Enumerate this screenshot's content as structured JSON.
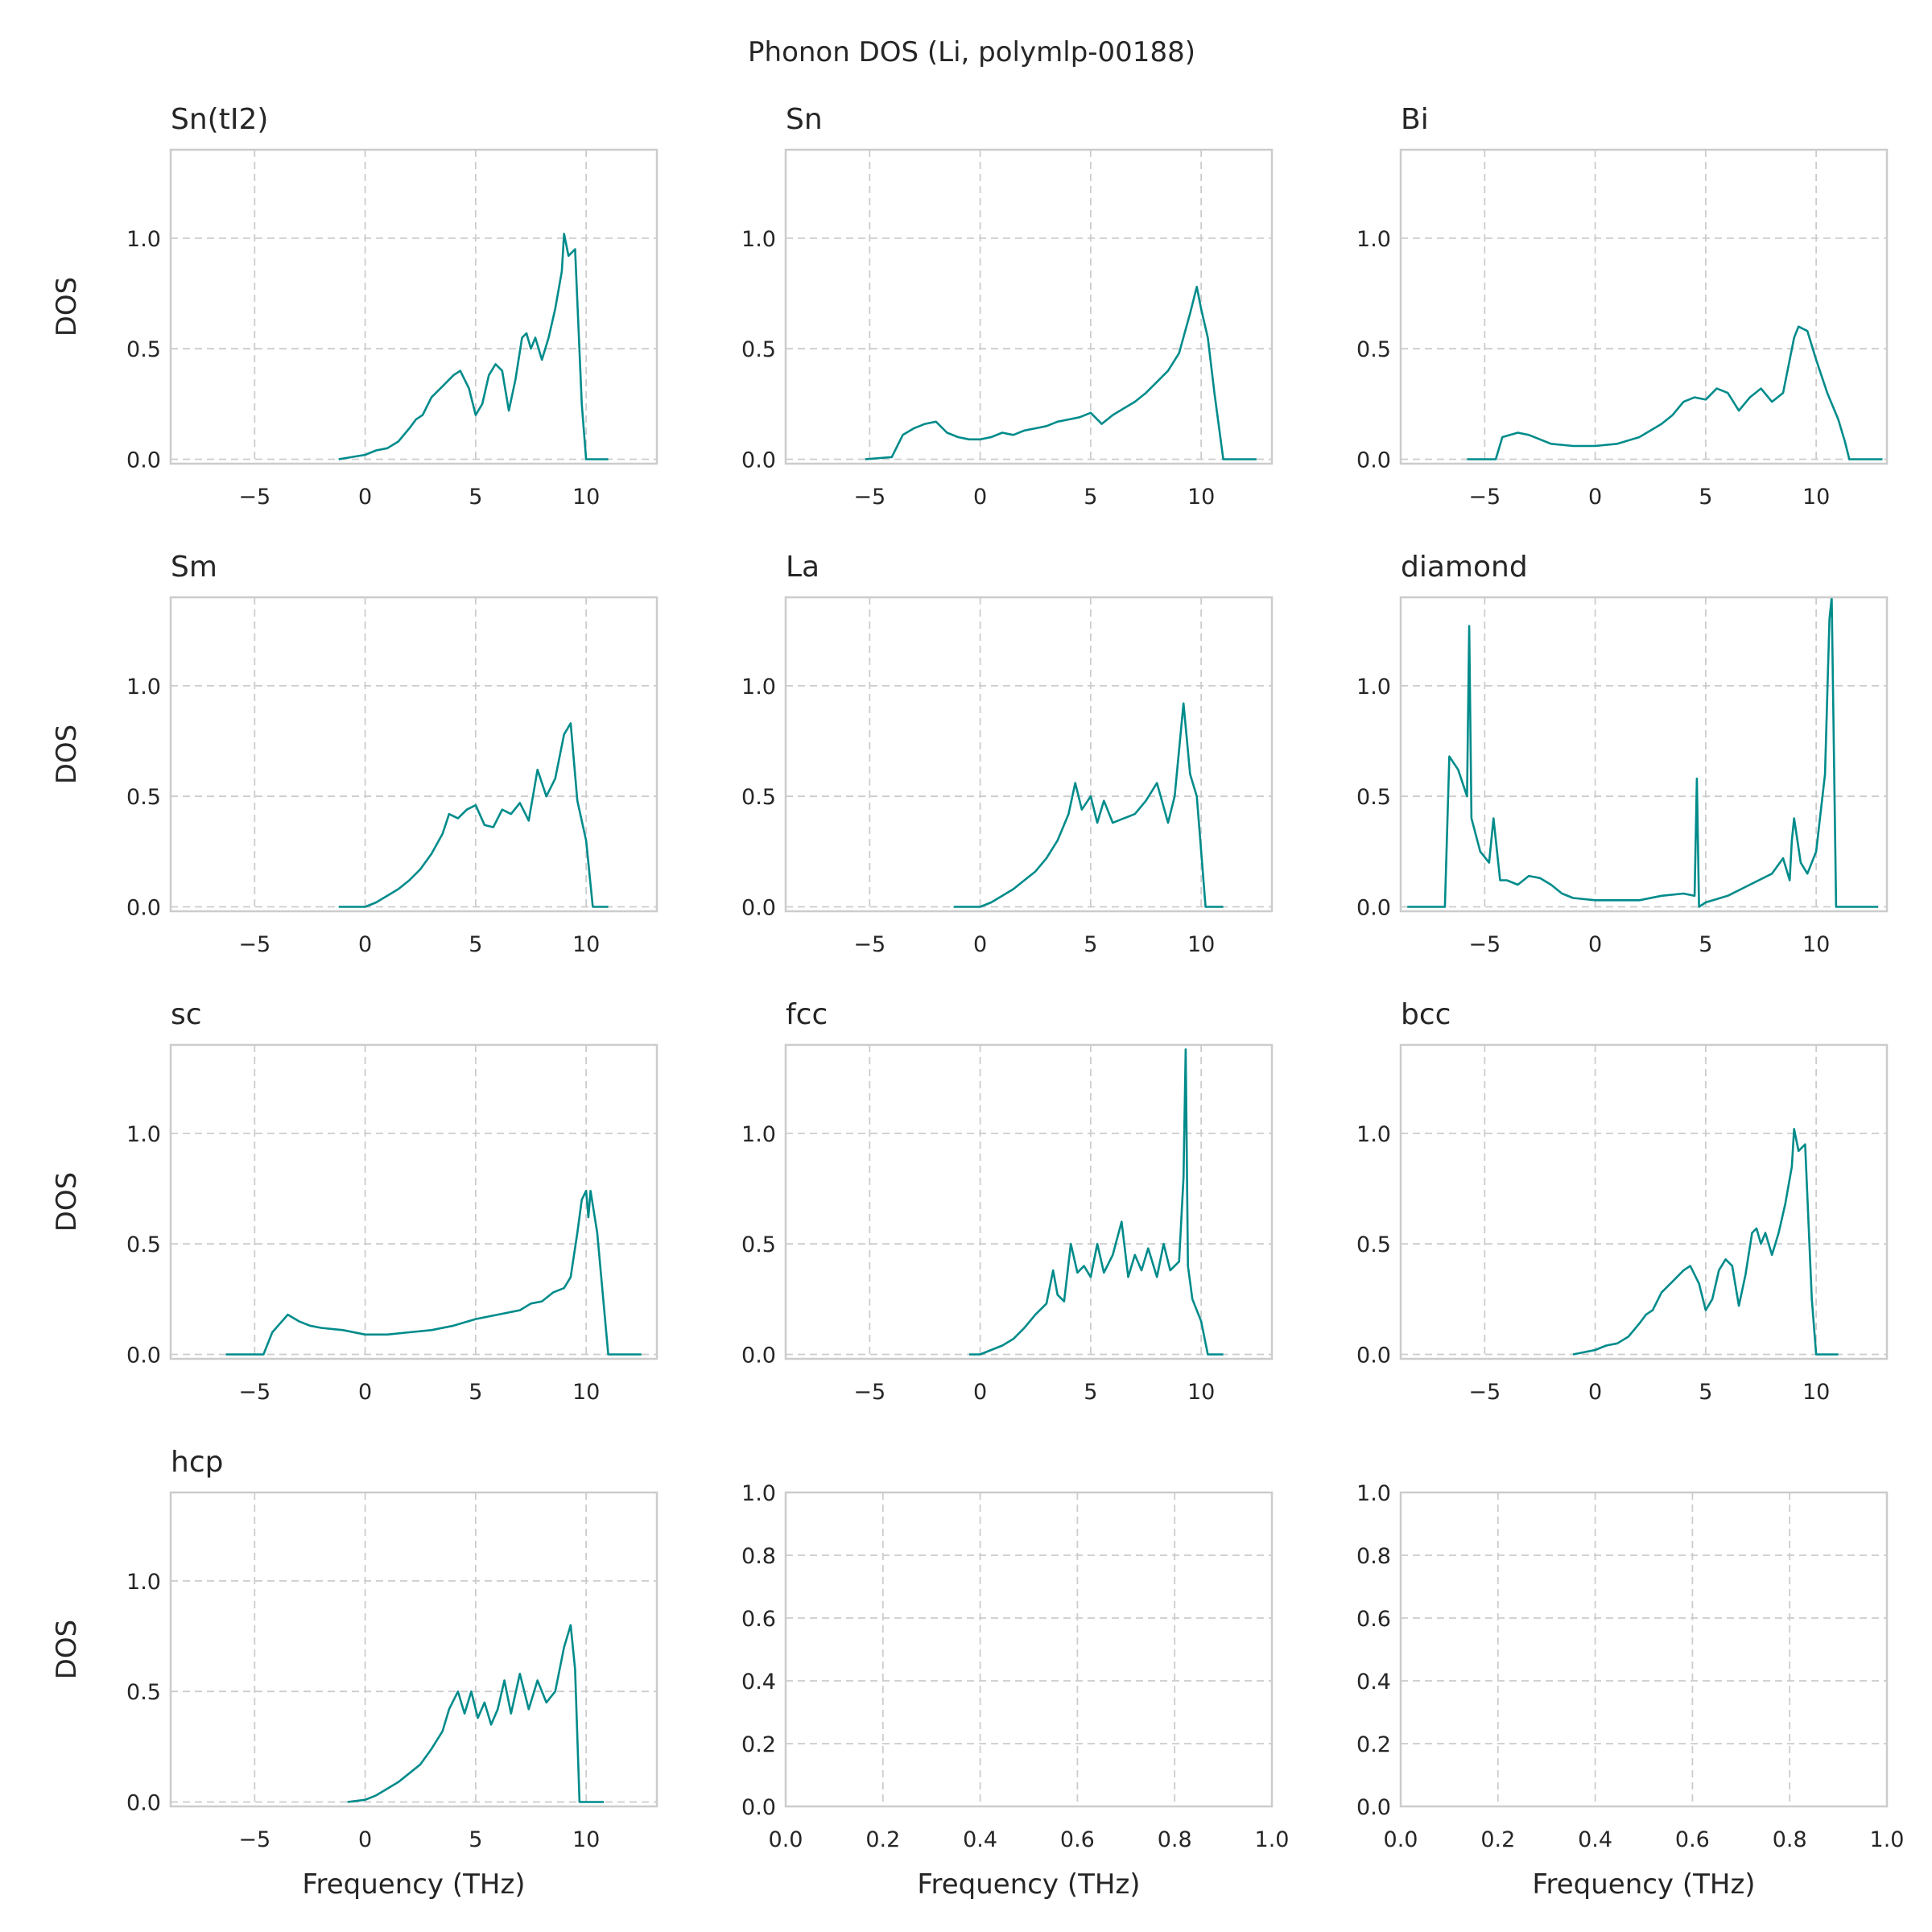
{
  "figure_title": "Phonon DOS (Li, polymlp-00188)",
  "colors": {
    "line": "#008b8b",
    "grid": "#cccccc",
    "frame": "#cccccc",
    "text": "#262626"
  },
  "chart_data": [
    {
      "type": "line",
      "title": "Sn(tI2)",
      "xlabel": "",
      "ylabel": "DOS",
      "xlim": [
        -8.8,
        13.2
      ],
      "ylim": [
        -0.02,
        1.4
      ],
      "xticks": [
        "−5",
        "0",
        "5",
        "10"
      ],
      "yticks": [
        "0.0",
        "0.5",
        "1.0"
      ],
      "grid": true,
      "series": [
        {
          "x": [
            -1.2,
            0,
            0.5,
            1,
            1.5,
            2,
            2.3,
            2.6,
            3,
            3.5,
            4,
            4.3,
            4.7,
            5,
            5.3,
            5.6,
            5.9,
            6.2,
            6.5,
            6.8,
            7.1,
            7.3,
            7.5,
            7.7,
            8,
            8.3,
            8.6,
            8.9,
            9,
            9.2,
            9.5,
            9.8,
            10,
            11
          ],
          "y": [
            0,
            0.02,
            0.04,
            0.05,
            0.08,
            0.14,
            0.18,
            0.2,
            0.28,
            0.33,
            0.38,
            0.4,
            0.32,
            0.2,
            0.25,
            0.38,
            0.43,
            0.4,
            0.22,
            0.36,
            0.55,
            0.57,
            0.5,
            0.55,
            0.45,
            0.55,
            0.68,
            0.85,
            1.02,
            0.92,
            0.95,
            0.25,
            0,
            0
          ]
        }
      ]
    },
    {
      "type": "line",
      "title": "Sn",
      "xlabel": "",
      "ylabel": "",
      "xlim": [
        -8.8,
        13.2
      ],
      "ylim": [
        -0.02,
        1.4
      ],
      "xticks": [
        "−5",
        "0",
        "5",
        "10"
      ],
      "yticks": [
        "0.0",
        "0.5",
        "1.0"
      ],
      "grid": true,
      "series": [
        {
          "x": [
            -5.2,
            -4,
            -3.5,
            -3,
            -2.5,
            -2,
            -1.5,
            -1,
            -0.5,
            0,
            0.5,
            1,
            1.5,
            2,
            2.5,
            3,
            3.5,
            4,
            4.5,
            5,
            5.5,
            6,
            6.5,
            7,
            7.5,
            8,
            8.5,
            9,
            9.5,
            9.8,
            10,
            10.3,
            10.6,
            11,
            12.5
          ],
          "y": [
            0,
            0.01,
            0.11,
            0.14,
            0.16,
            0.17,
            0.12,
            0.1,
            0.09,
            0.09,
            0.1,
            0.12,
            0.11,
            0.13,
            0.14,
            0.15,
            0.17,
            0.18,
            0.19,
            0.21,
            0.16,
            0.2,
            0.23,
            0.26,
            0.3,
            0.35,
            0.4,
            0.48,
            0.66,
            0.78,
            0.68,
            0.55,
            0.3,
            0,
            0
          ]
        }
      ]
    },
    {
      "type": "line",
      "title": "Bi",
      "xlabel": "",
      "ylabel": "",
      "xlim": [
        -8.8,
        13.2
      ],
      "ylim": [
        -0.02,
        1.4
      ],
      "xticks": [
        "−5",
        "0",
        "5",
        "10"
      ],
      "yticks": [
        "0.0",
        "0.5",
        "1.0"
      ],
      "grid": true,
      "series": [
        {
          "x": [
            -5.8,
            -4.5,
            -4.2,
            -3.5,
            -3,
            -2.5,
            -2,
            -1,
            0,
            1,
            2,
            3,
            3.5,
            4,
            4.5,
            5,
            5.5,
            6,
            6.5,
            7,
            7.5,
            8,
            8.5,
            9,
            9.2,
            9.6,
            10,
            10.5,
            11,
            11.3,
            11.5,
            13
          ],
          "y": [
            0,
            0,
            0.1,
            0.12,
            0.11,
            0.09,
            0.07,
            0.06,
            0.06,
            0.07,
            0.1,
            0.16,
            0.2,
            0.26,
            0.28,
            0.27,
            0.32,
            0.3,
            0.22,
            0.28,
            0.32,
            0.26,
            0.3,
            0.55,
            0.6,
            0.58,
            0.45,
            0.3,
            0.18,
            0.08,
            0,
            0
          ]
        }
      ]
    },
    {
      "type": "line",
      "title": "Sm",
      "xlabel": "",
      "ylabel": "DOS",
      "xlim": [
        -8.8,
        13.2
      ],
      "ylim": [
        -0.02,
        1.4
      ],
      "xticks": [
        "−5",
        "0",
        "5",
        "10"
      ],
      "yticks": [
        "0.0",
        "0.5",
        "1.0"
      ],
      "grid": true,
      "series": [
        {
          "x": [
            -1.2,
            0,
            0.5,
            1,
            1.5,
            2,
            2.5,
            3,
            3.5,
            3.8,
            4.2,
            4.6,
            5,
            5.4,
            5.8,
            6.2,
            6.6,
            7,
            7.4,
            7.8,
            8.2,
            8.6,
            9,
            9.3,
            9.6,
            10,
            10.3,
            11
          ],
          "y": [
            0,
            0,
            0.02,
            0.05,
            0.08,
            0.12,
            0.17,
            0.24,
            0.33,
            0.42,
            0.4,
            0.44,
            0.46,
            0.37,
            0.36,
            0.44,
            0.42,
            0.47,
            0.39,
            0.62,
            0.5,
            0.58,
            0.78,
            0.83,
            0.48,
            0.3,
            0,
            0
          ]
        }
      ]
    },
    {
      "type": "line",
      "title": "La",
      "xlabel": "",
      "ylabel": "",
      "xlim": [
        -8.8,
        13.2
      ],
      "ylim": [
        -0.02,
        1.4
      ],
      "xticks": [
        "−5",
        "0",
        "5",
        "10"
      ],
      "yticks": [
        "0.0",
        "0.5",
        "1.0"
      ],
      "grid": true,
      "series": [
        {
          "x": [
            -1.2,
            0,
            0.5,
            1,
            1.5,
            2,
            2.5,
            3,
            3.5,
            4,
            4.3,
            4.6,
            5,
            5.3,
            5.6,
            6,
            6.5,
            7,
            7.5,
            8,
            8.5,
            8.8,
            9.2,
            9.5,
            9.8,
            10.2,
            11
          ],
          "y": [
            0,
            0,
            0.02,
            0.05,
            0.08,
            0.12,
            0.16,
            0.22,
            0.3,
            0.42,
            0.56,
            0.44,
            0.5,
            0.38,
            0.48,
            0.38,
            0.4,
            0.42,
            0.48,
            0.56,
            0.38,
            0.5,
            0.92,
            0.6,
            0.5,
            0,
            0
          ]
        }
      ]
    },
    {
      "type": "line",
      "title": "diamond",
      "xlabel": "",
      "ylabel": "",
      "xlim": [
        -8.8,
        13.2
      ],
      "ylim": [
        -0.02,
        1.4
      ],
      "xticks": [
        "−5",
        "0",
        "5",
        "10"
      ],
      "yticks": [
        "0.0",
        "0.5",
        "1.0"
      ],
      "grid": true,
      "series": [
        {
          "x": [
            -8.5,
            -6.8,
            -6.6,
            -6.2,
            -5.8,
            -5.7,
            -5.6,
            -5.2,
            -4.8,
            -4.6,
            -4.3,
            -4,
            -3.5,
            -3,
            -2.5,
            -2,
            -1.5,
            -1,
            0,
            1,
            2,
            3,
            4,
            4.5,
            4.6,
            4.7,
            5,
            6,
            7,
            8,
            8.5,
            8.8,
            8.9,
            9,
            9.3,
            9.6,
            10,
            10.4,
            10.6,
            10.7,
            10.9,
            12.8
          ],
          "y": [
            0,
            0,
            0.68,
            0.62,
            0.5,
            1.27,
            0.4,
            0.25,
            0.2,
            0.4,
            0.12,
            0.12,
            0.1,
            0.14,
            0.13,
            0.1,
            0.06,
            0.04,
            0.03,
            0.03,
            0.03,
            0.05,
            0.06,
            0.05,
            0.58,
            0,
            0.02,
            0.05,
            0.1,
            0.15,
            0.22,
            0.12,
            0.3,
            0.4,
            0.2,
            0.15,
            0.25,
            0.6,
            1.3,
            1.4,
            0,
            0
          ]
        }
      ]
    },
    {
      "type": "line",
      "title": "sc",
      "xlabel": "",
      "ylabel": "DOS",
      "xlim": [
        -8.8,
        13.2
      ],
      "ylim": [
        -0.02,
        1.4
      ],
      "xticks": [
        "−5",
        "0",
        "5",
        "10"
      ],
      "yticks": [
        "0.0",
        "0.5",
        "1.0"
      ],
      "grid": true,
      "series": [
        {
          "x": [
            -6.3,
            -4.6,
            -4.2,
            -3.5,
            -3,
            -2.5,
            -2,
            -1,
            0,
            1,
            2,
            3,
            4,
            5,
            6,
            7,
            7.5,
            8,
            8.5,
            9,
            9.3,
            9.6,
            9.8,
            10,
            10.1,
            10.2,
            10.5,
            11,
            12.5
          ],
          "y": [
            0,
            0,
            0.1,
            0.18,
            0.15,
            0.13,
            0.12,
            0.11,
            0.09,
            0.09,
            0.1,
            0.11,
            0.13,
            0.16,
            0.18,
            0.2,
            0.23,
            0.24,
            0.28,
            0.3,
            0.35,
            0.55,
            0.7,
            0.74,
            0.62,
            0.74,
            0.55,
            0,
            0
          ]
        }
      ]
    },
    {
      "type": "line",
      "title": "fcc",
      "xlabel": "",
      "ylabel": "",
      "xlim": [
        -8.8,
        13.2
      ],
      "ylim": [
        -0.02,
        1.4
      ],
      "xticks": [
        "−5",
        "0",
        "5",
        "10"
      ],
      "yticks": [
        "0.0",
        "0.5",
        "1.0"
      ],
      "grid": true,
      "series": [
        {
          "x": [
            -0.5,
            0,
            0.5,
            1,
            1.5,
            2,
            2.5,
            3,
            3.3,
            3.5,
            3.8,
            4.1,
            4.4,
            4.7,
            5,
            5.3,
            5.6,
            6,
            6.4,
            6.7,
            7,
            7.3,
            7.6,
            8,
            8.3,
            8.6,
            9,
            9.2,
            9.3,
            9.4,
            9.6,
            10,
            10.3,
            11
          ],
          "y": [
            0,
            0,
            0.02,
            0.04,
            0.07,
            0.12,
            0.18,
            0.23,
            0.38,
            0.27,
            0.24,
            0.5,
            0.37,
            0.4,
            0.35,
            0.5,
            0.37,
            0.45,
            0.6,
            0.35,
            0.45,
            0.38,
            0.48,
            0.35,
            0.5,
            0.38,
            0.42,
            0.8,
            1.38,
            0.4,
            0.25,
            0.15,
            0,
            0
          ]
        }
      ]
    },
    {
      "type": "line",
      "title": "bcc",
      "xlabel": "",
      "ylabel": "",
      "xlim": [
        -8.8,
        13.2
      ],
      "ylim": [
        -0.02,
        1.4
      ],
      "xticks": [
        "−5",
        "0",
        "5",
        "10"
      ],
      "yticks": [
        "0.0",
        "0.5",
        "1.0"
      ],
      "grid": true,
      "series": [
        {
          "x": [
            -1,
            0,
            0.5,
            1,
            1.5,
            2,
            2.3,
            2.6,
            3,
            3.5,
            4,
            4.3,
            4.7,
            5,
            5.3,
            5.6,
            5.9,
            6.2,
            6.5,
            6.8,
            7.1,
            7.3,
            7.5,
            7.7,
            8,
            8.3,
            8.6,
            8.9,
            9,
            9.2,
            9.5,
            9.8,
            10,
            11
          ],
          "y": [
            0,
            0.02,
            0.04,
            0.05,
            0.08,
            0.14,
            0.18,
            0.2,
            0.28,
            0.33,
            0.38,
            0.4,
            0.32,
            0.2,
            0.25,
            0.38,
            0.43,
            0.4,
            0.22,
            0.36,
            0.55,
            0.57,
            0.5,
            0.55,
            0.45,
            0.55,
            0.68,
            0.85,
            1.02,
            0.92,
            0.95,
            0.25,
            0,
            0
          ]
        }
      ]
    },
    {
      "type": "line",
      "title": "hcp",
      "xlabel": "Frequency (THz)",
      "ylabel": "DOS",
      "xlim": [
        -8.8,
        13.2
      ],
      "ylim": [
        -0.02,
        1.4
      ],
      "xticks": [
        "−5",
        "0",
        "5",
        "10"
      ],
      "yticks": [
        "0.0",
        "0.5",
        "1.0"
      ],
      "grid": true,
      "series": [
        {
          "x": [
            -0.8,
            0,
            0.5,
            1,
            1.5,
            2,
            2.5,
            3,
            3.5,
            3.8,
            4.2,
            4.5,
            4.8,
            5.1,
            5.4,
            5.7,
            6,
            6.3,
            6.6,
            7,
            7.4,
            7.8,
            8.2,
            8.6,
            9,
            9.3,
            9.5,
            9.7,
            10,
            10.8
          ],
          "y": [
            0,
            0.01,
            0.03,
            0.06,
            0.09,
            0.13,
            0.17,
            0.24,
            0.32,
            0.42,
            0.5,
            0.4,
            0.5,
            0.38,
            0.45,
            0.35,
            0.42,
            0.55,
            0.4,
            0.58,
            0.42,
            0.55,
            0.45,
            0.5,
            0.7,
            0.8,
            0.6,
            0,
            0,
            0
          ]
        }
      ]
    },
    {
      "type": "line",
      "title": "",
      "xlabel": "Frequency (THz)",
      "ylabel": "",
      "xlim": [
        0,
        1
      ],
      "ylim": [
        0,
        1
      ],
      "xticks": [
        "0.0",
        "0.2",
        "0.4",
        "0.6",
        "0.8",
        "1.0"
      ],
      "yticks": [
        "0.0",
        "0.2",
        "0.4",
        "0.6",
        "0.8",
        "1.0"
      ],
      "grid": true,
      "series": []
    },
    {
      "type": "line",
      "title": "",
      "xlabel": "Frequency (THz)",
      "ylabel": "",
      "xlim": [
        0,
        1
      ],
      "ylim": [
        0,
        1
      ],
      "xticks": [
        "0.0",
        "0.2",
        "0.4",
        "0.6",
        "0.8",
        "1.0"
      ],
      "yticks": [
        "0.0",
        "0.2",
        "0.4",
        "0.6",
        "0.8",
        "1.0"
      ],
      "grid": true,
      "series": []
    }
  ]
}
